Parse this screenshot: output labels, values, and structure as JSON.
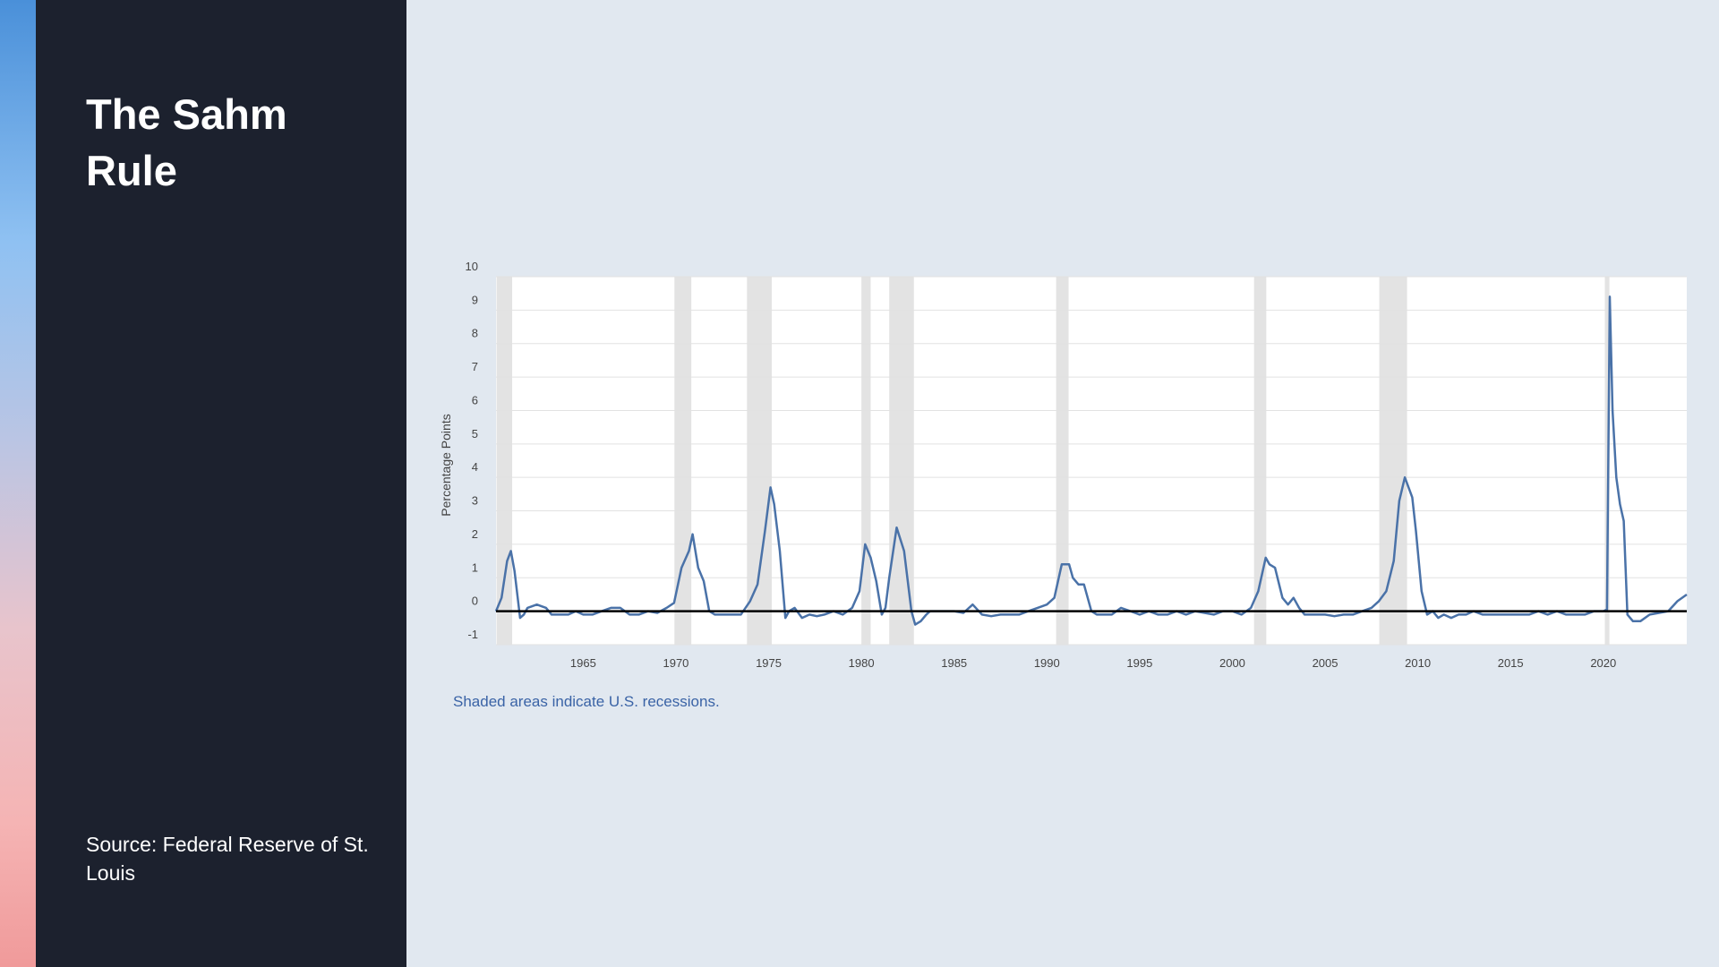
{
  "slide": {
    "title": "The Sahm Rule",
    "source": "Source: Federal Reserve of St. Louis"
  },
  "colors": {
    "sidebar_bg": "#1c212e",
    "page_bg": "#e1e8f0",
    "series_line": "#4a72a8",
    "recession_shade": "#e3e3e3",
    "note_text": "#3a63a6"
  },
  "chart_data": {
    "type": "line",
    "title": "",
    "xlabel": "",
    "ylabel": "Percentage Points",
    "xlim": [
      1960.3,
      2024.5
    ],
    "ylim": [
      -1,
      10
    ],
    "x_ticks": [
      1965,
      1970,
      1975,
      1980,
      1985,
      1990,
      1995,
      2000,
      2005,
      2010,
      2015,
      2020
    ],
    "y_ticks": [
      -1,
      0,
      1,
      2,
      3,
      4,
      5,
      6,
      7,
      8,
      9,
      10
    ],
    "grid": true,
    "zero_line": true,
    "note": "Shaded areas indicate U.S. recessions.",
    "recessions": [
      {
        "start": 1960.33,
        "end": 1961.17
      },
      {
        "start": 1969.92,
        "end": 1970.83
      },
      {
        "start": 1973.83,
        "end": 1975.17
      },
      {
        "start": 1980.0,
        "end": 1980.5
      },
      {
        "start": 1981.5,
        "end": 1982.83
      },
      {
        "start": 1990.5,
        "end": 1991.17
      },
      {
        "start": 2001.17,
        "end": 2001.83
      },
      {
        "start": 2007.92,
        "end": 2009.42
      },
      {
        "start": 2020.08,
        "end": 2020.33
      }
    ],
    "series": [
      {
        "x": [
          1960.3,
          1960.6,
          1960.9,
          1961.1,
          1961.3,
          1961.6,
          1961.8,
          1962.0,
          1962.5,
          1963.0,
          1963.3,
          1963.7,
          1964.2,
          1964.6,
          1965.0,
          1965.5,
          1966.0,
          1966.5,
          1967.0,
          1967.5,
          1968.0,
          1968.5,
          1969.0,
          1969.5,
          1969.9,
          1970.3,
          1970.7,
          1970.9,
          1971.2,
          1971.5,
          1971.8,
          1972.1,
          1972.5,
          1973.0,
          1973.5,
          1974.0,
          1974.4,
          1974.8,
          1975.1,
          1975.3,
          1975.6,
          1975.9,
          1976.1,
          1976.4,
          1976.8,
          1977.2,
          1977.6,
          1978.0,
          1978.5,
          1979.0,
          1979.5,
          1979.9,
          1980.2,
          1980.5,
          1980.8,
          1981.1,
          1981.3,
          1981.5,
          1981.9,
          1982.3,
          1982.7,
          1982.9,
          1983.2,
          1983.5,
          1983.7,
          1984.0,
          1984.5,
          1985.0,
          1985.5,
          1986.0,
          1986.5,
          1987.0,
          1987.5,
          1988.0,
          1988.5,
          1989.0,
          1989.5,
          1990.0,
          1990.4,
          1990.8,
          1991.2,
          1991.4,
          1991.7,
          1992.0,
          1992.4,
          1992.7,
          1993.0,
          1993.5,
          1994.0,
          1994.5,
          1995.0,
          1995.5,
          1996.0,
          1996.5,
          1997.0,
          1997.5,
          1998.0,
          1998.5,
          1999.0,
          1999.5,
          2000.0,
          2000.5,
          2001.0,
          2001.4,
          2001.8,
          2002.0,
          2002.3,
          2002.7,
          2003.0,
          2003.3,
          2003.6,
          2003.9,
          2004.2,
          2004.6,
          2005.0,
          2005.5,
          2006.0,
          2006.5,
          2007.0,
          2007.5,
          2007.9,
          2008.3,
          2008.7,
          2009.0,
          2009.3,
          2009.5,
          2009.7,
          2009.9,
          2010.2,
          2010.5,
          2010.8,
          2011.1,
          2011.4,
          2011.8,
          2012.2,
          2012.6,
          2013.0,
          2013.5,
          2014.0,
          2014.5,
          2015.0,
          2015.5,
          2016.0,
          2016.5,
          2017.0,
          2017.5,
          2018.0,
          2018.5,
          2019.0,
          2019.5,
          2020.0,
          2020.2,
          2020.35,
          2020.5,
          2020.7,
          2020.9,
          2021.1,
          2021.3,
          2021.6,
          2022.0,
          2022.5,
          2023.0,
          2023.5,
          2024.0,
          2024.5
        ],
        "values": [
          0.0,
          0.4,
          1.5,
          1.8,
          1.2,
          -0.2,
          -0.1,
          0.1,
          0.2,
          0.1,
          -0.1,
          -0.1,
          -0.1,
          0.0,
          -0.1,
          -0.1,
          0.0,
          0.1,
          0.1,
          -0.1,
          -0.1,
          0.0,
          -0.05,
          0.1,
          0.25,
          1.3,
          1.8,
          2.3,
          1.3,
          0.9,
          0.0,
          -0.1,
          -0.1,
          -0.1,
          -0.1,
          0.3,
          0.8,
          2.4,
          3.7,
          3.2,
          1.8,
          -0.2,
          0.0,
          0.1,
          -0.2,
          -0.1,
          -0.15,
          -0.1,
          0.0,
          -0.1,
          0.1,
          0.6,
          2.0,
          1.6,
          0.9,
          -0.1,
          0.1,
          1.0,
          2.5,
          1.8,
          0.0,
          -0.4,
          -0.3,
          -0.1,
          0.0,
          0.0,
          0.0,
          0.0,
          -0.05,
          0.2,
          -0.1,
          -0.15,
          -0.1,
          -0.1,
          -0.1,
          0.0,
          0.1,
          0.2,
          0.4,
          1.4,
          1.4,
          1.0,
          0.8,
          0.8,
          0.0,
          -0.1,
          -0.1,
          -0.1,
          0.1,
          0.0,
          -0.1,
          0.0,
          -0.1,
          -0.1,
          0.0,
          -0.1,
          0.0,
          -0.05,
          -0.1,
          0.0,
          0.0,
          -0.1,
          0.1,
          0.6,
          1.6,
          1.4,
          1.3,
          0.4,
          0.2,
          0.4,
          0.1,
          -0.1,
          -0.1,
          -0.1,
          -0.1,
          -0.15,
          -0.1,
          -0.1,
          0.0,
          0.1,
          0.3,
          0.6,
          1.5,
          3.3,
          4.0,
          3.7,
          3.4,
          2.4,
          0.6,
          -0.1,
          0.0,
          -0.2,
          -0.1,
          -0.2,
          -0.1,
          -0.1,
          0.0,
          -0.1,
          -0.1,
          -0.1,
          -0.1,
          -0.1,
          -0.1,
          0.0,
          -0.1,
          0.0,
          -0.1,
          -0.1,
          -0.1,
          0.0,
          0.0,
          0.05,
          9.4,
          6.0,
          4.0,
          3.2,
          2.7,
          -0.1,
          -0.3,
          -0.3,
          -0.1,
          -0.05,
          0.0,
          0.3,
          0.5
        ]
      }
    ]
  }
}
